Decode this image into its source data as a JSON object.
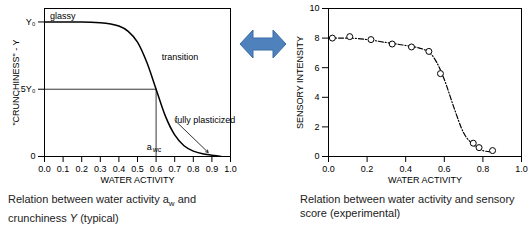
{
  "chart_data": [
    {
      "type": "line",
      "xlabel": "WATER ACTIVITY",
      "ylabel": "\"CRUNCHINESS\" - Y",
      "xlim": [
        0,
        1
      ],
      "ylim": [
        0,
        1.1
      ],
      "xticks": [
        {
          "value": 0,
          "label": "0.0"
        },
        0.1,
        0.2,
        0.3,
        0.4,
        0.5,
        0.6,
        0.7,
        0.8,
        0.9,
        {
          "value": 1,
          "label": "1.0"
        }
      ],
      "yticks": [
        0,
        {
          "value": 0.5,
          "label": ".5Y₀"
        },
        {
          "value": 1,
          "label": "Y₀"
        }
      ],
      "x": [
        0,
        0.1,
        0.2,
        0.3,
        0.4,
        0.45,
        0.5,
        0.55,
        0.6,
        0.65,
        0.7,
        0.75,
        0.8,
        0.85,
        0.9,
        0.95
      ],
      "values": [
        1,
        1,
        1,
        0.995,
        0.97,
        0.93,
        0.85,
        0.7,
        0.5,
        0.3,
        0.16,
        0.08,
        0.04,
        0.02,
        0.01,
        0
      ],
      "color": "#000000",
      "reference": {
        "x": 0.6,
        "y": 0.5
      },
      "annotations": [
        {
          "text": "glassy",
          "x": 0.03,
          "y": 1.04
        },
        {
          "text": "transition",
          "x": 0.63,
          "y": 0.74
        },
        {
          "text": "fully plasticized",
          "x": 0.7,
          "y": 0.27,
          "arrow_to": [
            0.88,
            0.03
          ]
        },
        {
          "text": "a",
          "sub": "wc",
          "x": 0.55,
          "y": 0.07
        }
      ],
      "caption": [
        {
          "text": "Relation between water activity a"
        },
        {
          "text": "w",
          "sub": true
        },
        {
          "text": " and crunchiness "
        },
        {
          "text": "Y",
          "italic": true
        },
        {
          "text": " (typical)"
        }
      ]
    },
    {
      "type": "scatter",
      "xlabel": "WATER ACTIVITY",
      "ylabel": "SENSORY INTENSITY",
      "xlim": [
        0,
        1
      ],
      "ylim": [
        0,
        10
      ],
      "xticks": [
        {
          "value": 0,
          "label": "0.0"
        },
        0.2,
        0.4,
        0.6,
        0.8,
        {
          "value": 1,
          "label": "1.0"
        }
      ],
      "yticks": [
        0,
        2,
        4,
        6,
        8,
        10
      ],
      "x": [
        0.02,
        0.11,
        0.22,
        0.33,
        0.43,
        0.52,
        0.58,
        0.75,
        0.78,
        0.85
      ],
      "values": [
        8.0,
        8.1,
        7.9,
        7.6,
        7.4,
        7.1,
        5.6,
        0.9,
        0.6,
        0.4
      ],
      "marker": "open circle",
      "color": "#000000",
      "fit": {
        "x": [
          0,
          0.1,
          0.2,
          0.3,
          0.4,
          0.5,
          0.55,
          0.6,
          0.65,
          0.7,
          0.75,
          0.8,
          0.85
        ],
        "values": [
          8.0,
          8.0,
          7.9,
          7.7,
          7.5,
          7.2,
          6.6,
          5.2,
          3.3,
          1.6,
          0.8,
          0.4,
          0.3
        ],
        "line_style": "dashed"
      },
      "caption": [
        {
          "text": "Relation between water activity and sensory score (experimental)"
        }
      ]
    }
  ]
}
